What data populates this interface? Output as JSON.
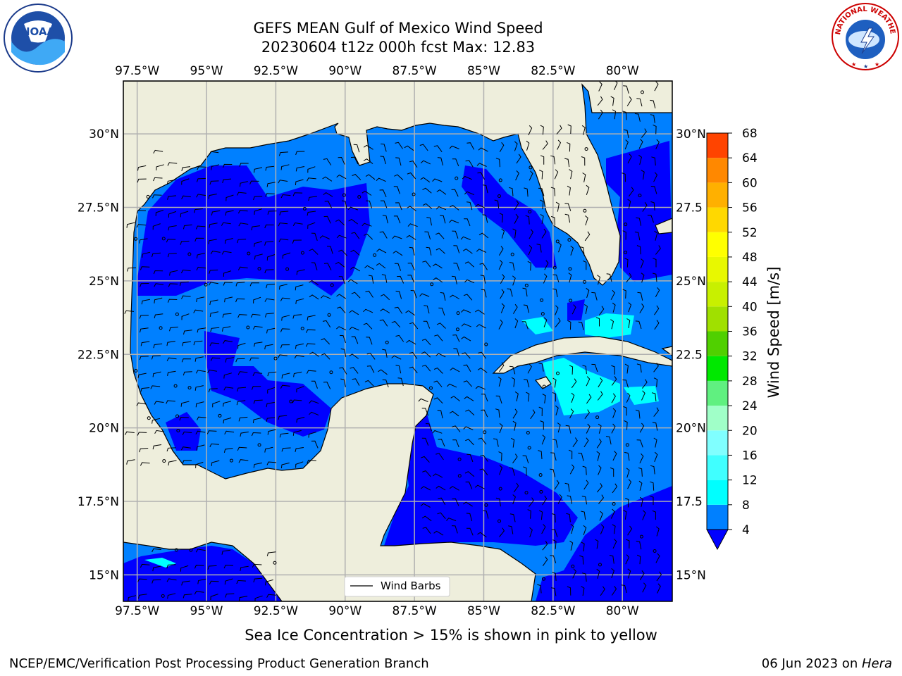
{
  "header": {
    "title_line1": "GEFS MEAN Gulf of Mexico Wind Speed",
    "title_line2": "20230604 t12z 000h fcst   Max: 12.83"
  },
  "logos": {
    "noaa": {
      "text": "NOAA",
      "ring_text": "NATIONAL OCEANIC AND ATMOSPHERIC ADMINISTRATION · U.S. DEPARTMENT OF COMMERCE"
    },
    "nws": {
      "ring_text": "NATIONAL WEATHER SERVICE"
    }
  },
  "map": {
    "lon_labels": [
      "97.5°W",
      "95°W",
      "92.5°W",
      "90°W",
      "87.5°W",
      "85°W",
      "82.5°W",
      "80°W"
    ],
    "lon_values": [
      -97.5,
      -95,
      -92.5,
      -90,
      -87.5,
      -85,
      -82.5,
      -80
    ],
    "lat_labels_left": [
      "30°N",
      "27.5°N",
      "25°N",
      "22.5°N",
      "20°N",
      "17.5°N",
      "15°N"
    ],
    "lat_labels_right": [
      "30°N",
      "27.5",
      "25°N",
      "22.5",
      "20°N",
      "17.5",
      "15°N"
    ],
    "lat_values": [
      30,
      27.5,
      25,
      22.5,
      20,
      17.5,
      15
    ],
    "extent": {
      "lon_min": -98,
      "lon_max": -78.2,
      "lat_min": 14.1,
      "lat_max": 31.8
    },
    "legend_label": "Wind Barbs",
    "land_color": "#eeeedc",
    "grid_color": "#b0b0b0"
  },
  "colorbar": {
    "label": "Wind Speed [m/s]",
    "ticks": [
      "68",
      "64",
      "60",
      "56",
      "52",
      "48",
      "44",
      "40",
      "36",
      "32",
      "28",
      "24",
      "20",
      "16",
      "12",
      "8",
      "4"
    ],
    "levels": [
      4,
      8,
      12,
      16,
      20,
      24,
      28,
      32,
      36,
      40,
      44,
      48,
      52,
      56,
      60,
      64,
      68
    ],
    "colors": [
      "#0080ff",
      "#00ffff",
      "#40ffff",
      "#80ffff",
      "#a0ffc8",
      "#60f080",
      "#00e800",
      "#50d000",
      "#a0e000",
      "#c8f000",
      "#e8f800",
      "#ffff00",
      "#ffd800",
      "#ffb000",
      "#ff8800",
      "#ff4400",
      "#ff0000"
    ],
    "under_color": "#0000ff"
  },
  "caption": "Sea Ice Concentration > 15% is shown in pink to yellow",
  "footer": {
    "left": "NCEP/EMC/Verification Post Processing Product Generation Branch",
    "right_date": "06 Jun 2023 on ",
    "right_host": "Hera"
  }
}
